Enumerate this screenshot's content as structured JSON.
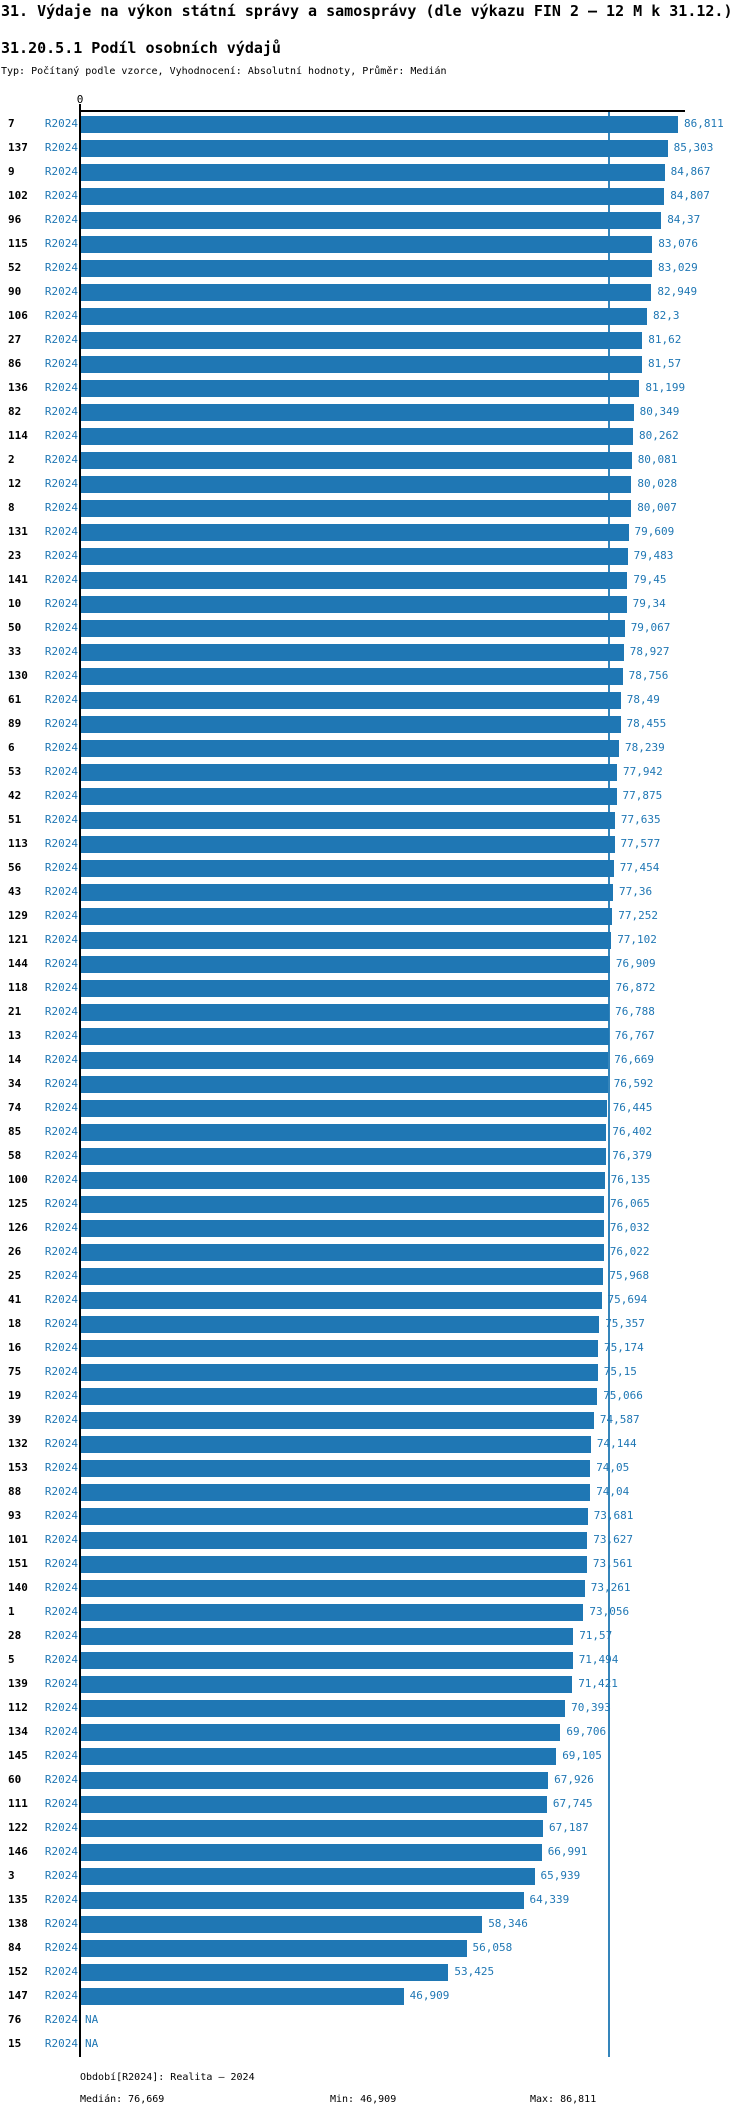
{
  "header": {
    "title": "31. Výdaje na výkon státní správy a samosprávy (dle výkazu FIN 2 – 12 M k 31.12.)",
    "subtitle": "31.20.5.1 Podíl osobních výdajů",
    "meta": "Typ: Počítaný podle vzorce, Vyhodnocení: Absolutní hodnoty, Průměr: Medián"
  },
  "axis": {
    "zero_label": "0"
  },
  "colors": {
    "bar": "#1f77b4",
    "blue_text": "#1f77b4",
    "median_line": "#3585bb",
    "axis": "#000000",
    "background": "#ffffff"
  },
  "footer": {
    "period": "Období[R2024]: Realita – 2024",
    "median": "Medián: 76,669",
    "min": "Min: 46,909",
    "max": "Max: 86,811"
  },
  "chart_data": {
    "type": "bar",
    "orientation": "horizontal",
    "title": "31.20.5.1 Podíl osobních výdajů",
    "xlabel": "",
    "ylabel": "",
    "xlim": [
      0,
      87.9
    ],
    "x_ticks": [
      "0"
    ],
    "grid": false,
    "legend_position": "none",
    "series_label": "R2024",
    "na_label": "NA",
    "median_value": 76.669,
    "median_label": "76,669",
    "min_value": 46.909,
    "max_value": 86.811,
    "rows": [
      {
        "id": "7",
        "value": 86.811,
        "label": "86,811"
      },
      {
        "id": "137",
        "value": 85.303,
        "label": "85,303"
      },
      {
        "id": "9",
        "value": 84.867,
        "label": "84,867"
      },
      {
        "id": "102",
        "value": 84.807,
        "label": "84,807"
      },
      {
        "id": "96",
        "value": 84.37,
        "label": "84,37"
      },
      {
        "id": "115",
        "value": 83.076,
        "label": "83,076"
      },
      {
        "id": "52",
        "value": 83.029,
        "label": "83,029"
      },
      {
        "id": "90",
        "value": 82.949,
        "label": "82,949"
      },
      {
        "id": "106",
        "value": 82.3,
        "label": "82,3"
      },
      {
        "id": "27",
        "value": 81.62,
        "label": "81,62"
      },
      {
        "id": "86",
        "value": 81.57,
        "label": "81,57"
      },
      {
        "id": "136",
        "value": 81.199,
        "label": "81,199"
      },
      {
        "id": "82",
        "value": 80.349,
        "label": "80,349"
      },
      {
        "id": "114",
        "value": 80.262,
        "label": "80,262"
      },
      {
        "id": "2",
        "value": 80.081,
        "label": "80,081"
      },
      {
        "id": "12",
        "value": 80.028,
        "label": "80,028"
      },
      {
        "id": "8",
        "value": 80.007,
        "label": "80,007"
      },
      {
        "id": "131",
        "value": 79.609,
        "label": "79,609"
      },
      {
        "id": "23",
        "value": 79.483,
        "label": "79,483"
      },
      {
        "id": "141",
        "value": 79.45,
        "label": "79,45"
      },
      {
        "id": "10",
        "value": 79.34,
        "label": "79,34"
      },
      {
        "id": "50",
        "value": 79.067,
        "label": "79,067"
      },
      {
        "id": "33",
        "value": 78.927,
        "label": "78,927"
      },
      {
        "id": "130",
        "value": 78.756,
        "label": "78,756"
      },
      {
        "id": "61",
        "value": 78.49,
        "label": "78,49"
      },
      {
        "id": "89",
        "value": 78.455,
        "label": "78,455"
      },
      {
        "id": "6",
        "value": 78.239,
        "label": "78,239"
      },
      {
        "id": "53",
        "value": 77.942,
        "label": "77,942"
      },
      {
        "id": "42",
        "value": 77.875,
        "label": "77,875"
      },
      {
        "id": "51",
        "value": 77.635,
        "label": "77,635"
      },
      {
        "id": "113",
        "value": 77.577,
        "label": "77,577"
      },
      {
        "id": "56",
        "value": 77.454,
        "label": "77,454"
      },
      {
        "id": "43",
        "value": 77.36,
        "label": "77,36"
      },
      {
        "id": "129",
        "value": 77.252,
        "label": "77,252"
      },
      {
        "id": "121",
        "value": 77.102,
        "label": "77,102"
      },
      {
        "id": "144",
        "value": 76.909,
        "label": "76,909"
      },
      {
        "id": "118",
        "value": 76.872,
        "label": "76,872"
      },
      {
        "id": "21",
        "value": 76.788,
        "label": "76,788"
      },
      {
        "id": "13",
        "value": 76.767,
        "label": "76,767"
      },
      {
        "id": "14",
        "value": 76.669,
        "label": "76,669"
      },
      {
        "id": "34",
        "value": 76.592,
        "label": "76,592"
      },
      {
        "id": "74",
        "value": 76.445,
        "label": "76,445"
      },
      {
        "id": "85",
        "value": 76.402,
        "label": "76,402"
      },
      {
        "id": "58",
        "value": 76.379,
        "label": "76,379"
      },
      {
        "id": "100",
        "value": 76.135,
        "label": "76,135"
      },
      {
        "id": "125",
        "value": 76.065,
        "label": "76,065"
      },
      {
        "id": "126",
        "value": 76.032,
        "label": "76,032"
      },
      {
        "id": "26",
        "value": 76.022,
        "label": "76,022"
      },
      {
        "id": "25",
        "value": 75.968,
        "label": "75,968"
      },
      {
        "id": "41",
        "value": 75.694,
        "label": "75,694"
      },
      {
        "id": "18",
        "value": 75.357,
        "label": "75,357"
      },
      {
        "id": "16",
        "value": 75.174,
        "label": "75,174"
      },
      {
        "id": "75",
        "value": 75.15,
        "label": "75,15"
      },
      {
        "id": "19",
        "value": 75.066,
        "label": "75,066"
      },
      {
        "id": "39",
        "value": 74.587,
        "label": "74,587"
      },
      {
        "id": "132",
        "value": 74.144,
        "label": "74,144"
      },
      {
        "id": "153",
        "value": 74.05,
        "label": "74,05"
      },
      {
        "id": "88",
        "value": 74.04,
        "label": "74,04"
      },
      {
        "id": "93",
        "value": 73.681,
        "label": "73,681"
      },
      {
        "id": "101",
        "value": 73.627,
        "label": "73,627"
      },
      {
        "id": "151",
        "value": 73.561,
        "label": "73,561"
      },
      {
        "id": "140",
        "value": 73.261,
        "label": "73,261"
      },
      {
        "id": "1",
        "value": 73.056,
        "label": "73,056"
      },
      {
        "id": "28",
        "value": 71.57,
        "label": "71,57"
      },
      {
        "id": "5",
        "value": 71.494,
        "label": "71,494"
      },
      {
        "id": "139",
        "value": 71.421,
        "label": "71,421"
      },
      {
        "id": "112",
        "value": 70.393,
        "label": "70,393"
      },
      {
        "id": "134",
        "value": 69.706,
        "label": "69,706"
      },
      {
        "id": "145",
        "value": 69.105,
        "label": "69,105"
      },
      {
        "id": "60",
        "value": 67.926,
        "label": "67,926"
      },
      {
        "id": "111",
        "value": 67.745,
        "label": "67,745"
      },
      {
        "id": "122",
        "value": 67.187,
        "label": "67,187"
      },
      {
        "id": "146",
        "value": 66.991,
        "label": "66,991"
      },
      {
        "id": "3",
        "value": 65.939,
        "label": "65,939"
      },
      {
        "id": "135",
        "value": 64.339,
        "label": "64,339"
      },
      {
        "id": "138",
        "value": 58.346,
        "label": "58,346"
      },
      {
        "id": "84",
        "value": 56.058,
        "label": "56,058"
      },
      {
        "id": "152",
        "value": 53.425,
        "label": "53,425"
      },
      {
        "id": "147",
        "value": 46.909,
        "label": "46,909"
      },
      {
        "id": "76",
        "value": null,
        "label": "NA"
      },
      {
        "id": "15",
        "value": null,
        "label": "NA"
      }
    ]
  }
}
